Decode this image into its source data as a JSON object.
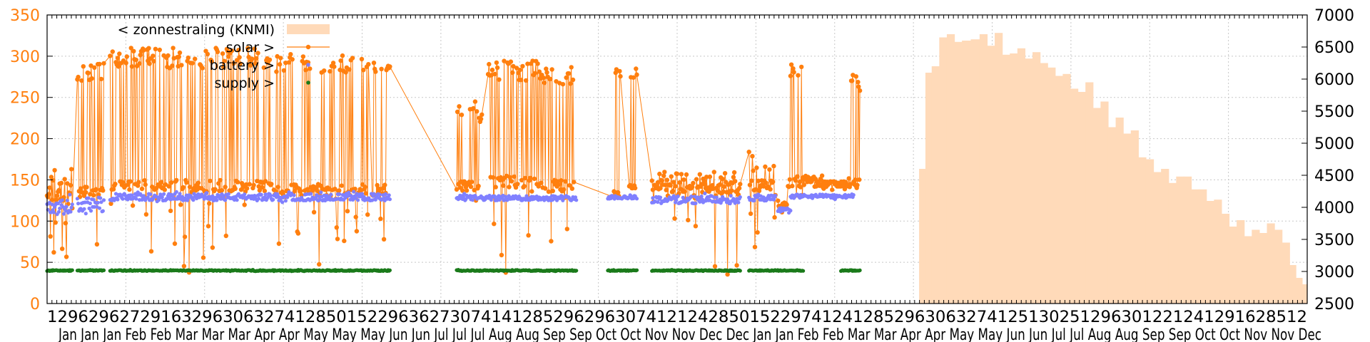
{
  "chart_data": {
    "type": "line",
    "title": "",
    "xlabel": "",
    "ylabel": "",
    "ylabel_right": "",
    "grid": true,
    "legend_position": "top-left",
    "y_left": {
      "ticks": [
        0,
        50,
        100,
        150,
        200,
        250,
        300,
        350
      ],
      "range": [
        0,
        350
      ],
      "color": "#ff7f0e"
    },
    "y_right": {
      "ticks": [
        2500,
        3000,
        3500,
        4000,
        4500,
        5000,
        5500,
        6000,
        6500,
        7000
      ],
      "range": [
        2500,
        7000
      ],
      "color": "#000000"
    },
    "x_range": [
      0,
      1
    ],
    "x_tick_row1": "12962962729163296306327412850152296362730741412852962963074121242850152297412412852963063274125130251296301221241291628512",
    "x_tick_row2": "Jan Jan Jan Feb Feb Mar Mar Mar Apr Apr May May May Jun Jun Jul Jul Jul Aug Aug Sep Sep Oct Oct Nov Nov Dec Dec Jan Jan Feb Feb Mar Mar Apr Apr May May Jun Jun Jul Jul Aug Aug Sep Sep Oct Oct Nov Nov Dec",
    "legend": [
      {
        "label": "< zonnestraling (KNMI)",
        "color": "#ffdab9",
        "style": "fill"
      },
      {
        "label": "solar >",
        "color": "#ff7f0e",
        "style": "line-point"
      },
      {
        "label": "battery >",
        "color": "#8080ff",
        "style": "point"
      },
      {
        "label": "supply >",
        "color": "#1a7a1a",
        "style": "point"
      }
    ],
    "series": [
      {
        "name": "< zonnestraling (KNMI)",
        "axis": "right",
        "type": "area-step",
        "color": "#ffdab9",
        "x": [
          0.0,
          0.685,
          0.692,
          0.697,
          0.702,
          0.708,
          0.714,
          0.72,
          0.726,
          0.733,
          0.74,
          0.746,
          0.752,
          0.758,
          0.764,
          0.77,
          0.776,
          0.782,
          0.788,
          0.794,
          0.8,
          0.806,
          0.812,
          0.818,
          0.824,
          0.83,
          0.836,
          0.842,
          0.848,
          0.854,
          0.86,
          0.866,
          0.872,
          0.878,
          0.884,
          0.89,
          0.896,
          0.902,
          0.908,
          0.914,
          0.92,
          0.926,
          0.932,
          0.938,
          0.944,
          0.95,
          0.956,
          0.962,
          0.968,
          0.974,
          0.98,
          0.986,
          0.991,
          0.996,
          1.0
        ],
        "values": [
          null,
          2500,
          4600,
          6100,
          6200,
          6650,
          6700,
          6580,
          6600,
          6620,
          6700,
          6520,
          6720,
          6380,
          6400,
          6480,
          6320,
          6420,
          6250,
          6180,
          6050,
          6080,
          5850,
          5800,
          5950,
          5550,
          5650,
          5250,
          5400,
          5150,
          5200,
          4780,
          4750,
          4550,
          4600,
          4380,
          4480,
          4480,
          4280,
          4280,
          4100,
          4120,
          3900,
          3700,
          3800,
          3550,
          3650,
          3600,
          3750,
          3650,
          3450,
          3100,
          2900,
          2800,
          2700
        ]
      },
      {
        "name": "solar >",
        "axis": "left",
        "type": "line-point",
        "color": "#ff7f0e",
        "segments": [
          {
            "x0": 0.0,
            "x1": 0.02,
            "base": 128,
            "min": 45,
            "max": 165
          },
          {
            "x0": 0.024,
            "x1": 0.045,
            "base": 132,
            "min": 55,
            "max": 295
          },
          {
            "x0": 0.05,
            "x1": 0.178,
            "base": 140,
            "min": 35,
            "max": 310
          },
          {
            "x0": 0.18,
            "x1": 0.255,
            "base": 135,
            "min": 35,
            "max": 305
          },
          {
            "x0": 0.258,
            "x1": 0.272,
            "base": 135,
            "min": 50,
            "max": 295
          },
          {
            "x0": 0.325,
            "x1": 0.345,
            "base": 140,
            "min": 90,
            "max": 245
          },
          {
            "x0": 0.35,
            "x1": 0.39,
            "base": 145,
            "min": 35,
            "max": 295
          },
          {
            "x0": 0.39,
            "x1": 0.418,
            "base": 140,
            "min": 70,
            "max": 290
          },
          {
            "x0": 0.448,
            "x1": 0.455,
            "base": 130,
            "min": 130,
            "max": 285
          },
          {
            "x0": 0.462,
            "x1": 0.468,
            "base": 140,
            "min": 140,
            "max": 285
          },
          {
            "x0": 0.48,
            "x1": 0.55,
            "base": 135,
            "min": 35,
            "max": 160
          },
          {
            "x0": 0.557,
            "x1": 0.578,
            "base": 140,
            "min": 50,
            "max": 185
          },
          {
            "x0": 0.58,
            "x1": 0.587,
            "base": 115,
            "min": 110,
            "max": 125
          },
          {
            "x0": 0.588,
            "x1": 0.6,
            "base": 145,
            "min": 130,
            "max": 295
          },
          {
            "x0": 0.6,
            "x1": 0.615,
            "base": 148,
            "min": 140,
            "max": 155
          },
          {
            "x0": 0.615,
            "x1": 0.635,
            "base": 142,
            "min": 135,
            "max": 148
          },
          {
            "x0": 0.635,
            "x1": 0.642,
            "base": 145,
            "min": 140,
            "max": 285
          },
          {
            "x0": 0.642,
            "x1": 0.645,
            "base": 145,
            "min": 140,
            "max": 275
          }
        ]
      },
      {
        "name": "battery >",
        "axis": "left",
        "type": "point",
        "color": "#8080ff",
        "segments": [
          {
            "x0": 0.0,
            "x1": 0.02,
            "base": 117,
            "min": 105,
            "max": 135
          },
          {
            "x0": 0.024,
            "x1": 0.045,
            "base": 120,
            "min": 105,
            "max": 135
          },
          {
            "x0": 0.05,
            "x1": 0.272,
            "base": 129,
            "min": 122,
            "max": 136
          },
          {
            "x0": 0.325,
            "x1": 0.42,
            "base": 128,
            "min": 124,
            "max": 134
          },
          {
            "x0": 0.445,
            "x1": 0.468,
            "base": 129,
            "min": 126,
            "max": 133
          },
          {
            "x0": 0.48,
            "x1": 0.55,
            "base": 126,
            "min": 118,
            "max": 134
          },
          {
            "x0": 0.557,
            "x1": 0.578,
            "base": 128,
            "min": 122,
            "max": 134
          },
          {
            "x0": 0.58,
            "x1": 0.59,
            "base": 113,
            "min": 108,
            "max": 118
          },
          {
            "x0": 0.59,
            "x1": 0.64,
            "base": 130,
            "min": 126,
            "max": 134
          }
        ]
      },
      {
        "name": "supply >",
        "axis": "left",
        "type": "point",
        "color": "#1a7a1a",
        "segments": [
          {
            "x0": 0.0,
            "x1": 0.02,
            "base": 40,
            "min": 39,
            "max": 41
          },
          {
            "x0": 0.024,
            "x1": 0.045,
            "base": 40,
            "min": 39,
            "max": 41
          },
          {
            "x0": 0.05,
            "x1": 0.272,
            "base": 40,
            "min": 39,
            "max": 41
          },
          {
            "x0": 0.325,
            "x1": 0.42,
            "base": 40,
            "min": 39,
            "max": 41
          },
          {
            "x0": 0.445,
            "x1": 0.468,
            "base": 40,
            "min": 39,
            "max": 41
          },
          {
            "x0": 0.48,
            "x1": 0.55,
            "base": 40,
            "min": 39,
            "max": 41
          },
          {
            "x0": 0.557,
            "x1": 0.6,
            "base": 40,
            "min": 39,
            "max": 41
          },
          {
            "x0": 0.63,
            "x1": 0.645,
            "base": 40,
            "min": 39,
            "max": 41
          }
        ]
      }
    ]
  }
}
